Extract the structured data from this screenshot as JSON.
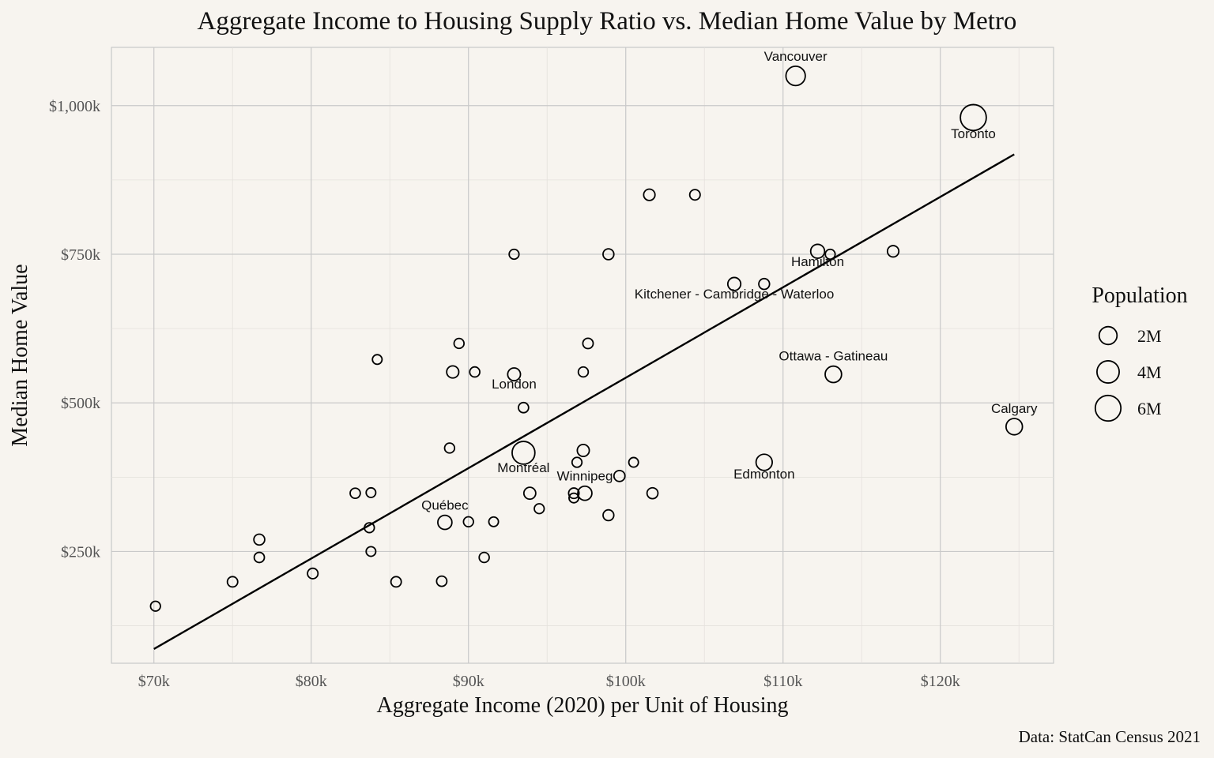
{
  "chart_data": {
    "type": "scatter",
    "title": "Aggregate Income to Housing Supply Ratio vs. Median Home Value by Metro",
    "xlabel": "Aggregate Income (2020) per Unit of Housing",
    "ylabel": "Median Home Value",
    "caption": "Data: StatCan Census 2021",
    "xlim": [
      67300,
      127200
    ],
    "ylim": [
      62000,
      1098000
    ],
    "x_ticks": [
      {
        "value": 70000,
        "label": "$70k"
      },
      {
        "value": 80000,
        "label": "$80k"
      },
      {
        "value": 90000,
        "label": "$90k"
      },
      {
        "value": 100000,
        "label": "$100k"
      },
      {
        "value": 110000,
        "label": "$110k"
      },
      {
        "value": 120000,
        "label": "$120k"
      }
    ],
    "y_ticks": [
      {
        "value": 250000,
        "label": "$250k"
      },
      {
        "value": 500000,
        "label": "$500k"
      },
      {
        "value": 750000,
        "label": "$750k"
      },
      {
        "value": 1000000,
        "label": "$1,000k"
      }
    ],
    "grid": true,
    "legend": {
      "title": "Population",
      "placement": "right",
      "entries": [
        {
          "label": "2M",
          "value": 2000000
        },
        {
          "label": "4M",
          "value": 4000000
        },
        {
          "label": "6M",
          "value": 6000000
        }
      ]
    },
    "points": [
      {
        "x": 110800,
        "y": 1050000,
        "pop": 2600000,
        "label": "Vancouver"
      },
      {
        "x": 122100,
        "y": 980000,
        "pop": 6200000,
        "label": "Toronto"
      },
      {
        "x": 124700,
        "y": 460000,
        "pop": 1480000,
        "label": "Calgary"
      },
      {
        "x": 108800,
        "y": 400000,
        "pop": 1420000,
        "label": "Edmonton"
      },
      {
        "x": 113200,
        "y": 548000,
        "pop": 1490000,
        "label": "Ottawa - Gatineau"
      },
      {
        "x": 93500,
        "y": 416000,
        "pop": 4290000,
        "label": "Montréal"
      },
      {
        "x": 112200,
        "y": 755000,
        "pop": 790000,
        "label": "Hamilton"
      },
      {
        "x": 106900,
        "y": 700000,
        "pop": 580000,
        "label": "Kitchener - Cambridge - Waterloo"
      },
      {
        "x": 92900,
        "y": 548000,
        "pop": 540000,
        "label": "London"
      },
      {
        "x": 88500,
        "y": 299000,
        "pop": 840000,
        "label": "Québec"
      },
      {
        "x": 97400,
        "y": 348000,
        "pop": 840000,
        "label": "Winnipeg"
      },
      {
        "x": 70100,
        "y": 158000,
        "pop": 120000
      },
      {
        "x": 75000,
        "y": 199000,
        "pop": 170000
      },
      {
        "x": 76700,
        "y": 270000,
        "pop": 230000
      },
      {
        "x": 76700,
        "y": 240000,
        "pop": 150000
      },
      {
        "x": 80100,
        "y": 213000,
        "pop": 180000
      },
      {
        "x": 82800,
        "y": 348000,
        "pop": 150000
      },
      {
        "x": 83700,
        "y": 290000,
        "pop": 120000
      },
      {
        "x": 83800,
        "y": 349000,
        "pop": 100000
      },
      {
        "x": 83800,
        "y": 250000,
        "pop": 100000
      },
      {
        "x": 84200,
        "y": 573000,
        "pop": 100000
      },
      {
        "x": 85400,
        "y": 199000,
        "pop": 170000
      },
      {
        "x": 88300,
        "y": 200000,
        "pop": 160000
      },
      {
        "x": 88800,
        "y": 424000,
        "pop": 130000
      },
      {
        "x": 89000,
        "y": 552000,
        "pop": 420000
      },
      {
        "x": 89400,
        "y": 600000,
        "pop": 130000
      },
      {
        "x": 90000,
        "y": 300000,
        "pop": 130000
      },
      {
        "x": 90400,
        "y": 552000,
        "pop": 140000
      },
      {
        "x": 91000,
        "y": 240000,
        "pop": 140000
      },
      {
        "x": 91600,
        "y": 300000,
        "pop": 100000
      },
      {
        "x": 92900,
        "y": 750000,
        "pop": 120000
      },
      {
        "x": 93500,
        "y": 492000,
        "pop": 150000
      },
      {
        "x": 93900,
        "y": 348000,
        "pop": 380000
      },
      {
        "x": 94500,
        "y": 322000,
        "pop": 120000
      },
      {
        "x": 96700,
        "y": 348000,
        "pop": 180000
      },
      {
        "x": 96700,
        "y": 340000,
        "pop": 100000
      },
      {
        "x": 96900,
        "y": 400000,
        "pop": 120000
      },
      {
        "x": 97300,
        "y": 420000,
        "pop": 400000
      },
      {
        "x": 97300,
        "y": 552000,
        "pop": 130000
      },
      {
        "x": 97600,
        "y": 600000,
        "pop": 170000
      },
      {
        "x": 98900,
        "y": 750000,
        "pop": 230000
      },
      {
        "x": 98900,
        "y": 311000,
        "pop": 220000
      },
      {
        "x": 99600,
        "y": 377000,
        "pop": 250000
      },
      {
        "x": 100500,
        "y": 400000,
        "pop": 100000
      },
      {
        "x": 101500,
        "y": 850000,
        "pop": 300000
      },
      {
        "x": 101700,
        "y": 348000,
        "pop": 240000
      },
      {
        "x": 104400,
        "y": 850000,
        "pop": 180000
      },
      {
        "x": 108800,
        "y": 700000,
        "pop": 220000
      },
      {
        "x": 113000,
        "y": 750000,
        "pop": 120000
      },
      {
        "x": 117000,
        "y": 755000,
        "pop": 300000
      }
    ],
    "trend_line": {
      "x": [
        70000,
        124700
      ],
      "y": [
        86000,
        918000
      ]
    }
  }
}
